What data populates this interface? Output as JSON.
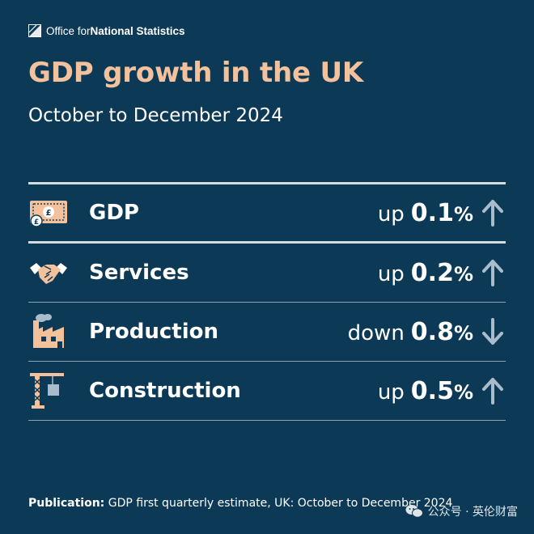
{
  "brand": {
    "prefix": "Office for ",
    "name": "National Statistics",
    "icon": "ons-logo-icon"
  },
  "header": {
    "title": "GDP growth in the UK",
    "subtitle": "October to December 2024"
  },
  "rows": [
    {
      "label": "GDP",
      "direction": "up",
      "value": "0.1",
      "unit": "%",
      "icon": "pound-note-icon",
      "arrow": "up-arrow-icon"
    },
    {
      "label": "Services",
      "direction": "up",
      "value": "0.2",
      "unit": "%",
      "icon": "handshake-icon",
      "arrow": "up-arrow-icon"
    },
    {
      "label": "Production",
      "direction": "down",
      "value": "0.8",
      "unit": "%",
      "icon": "factory-icon",
      "arrow": "down-arrow-icon"
    },
    {
      "label": "Construction",
      "direction": "up",
      "value": "0.5",
      "unit": "%",
      "icon": "crane-icon",
      "arrow": "up-arrow-icon"
    }
  ],
  "footer": {
    "label": "Publication:",
    "text": " GDP first quarterly estimate, UK: October to December 2024"
  },
  "watermark": {
    "text": "公众号 · 英伦财富",
    "icon": "wechat-icon"
  },
  "colors": {
    "background": "#0c3a56",
    "accent": "#f3c19c",
    "arrow": "#a9bccb"
  }
}
